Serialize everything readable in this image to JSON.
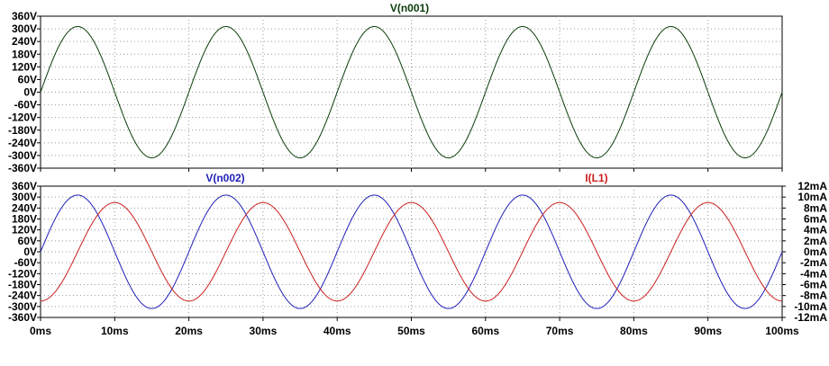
{
  "chart_data": [
    {
      "type": "line",
      "title": "V(n001)",
      "x_ticks": [
        "0ms",
        "10ms",
        "20ms",
        "30ms",
        "40ms",
        "50ms",
        "60ms",
        "70ms",
        "80ms",
        "90ms",
        "100ms"
      ],
      "y_ticks": [
        "360V",
        "300V",
        "240V",
        "180V",
        "120V",
        "60V",
        "0V",
        "-60V",
        "-120V",
        "-180V",
        "-240V",
        "-300V",
        "-360V"
      ],
      "xlim": [
        0,
        100
      ],
      "ylim": [
        -360,
        360
      ],
      "grid": true,
      "series": [
        {
          "name": "V(n001)",
          "color": "#0b3d0b",
          "axis": "left",
          "amplitude": 311,
          "frequency_hz": 50,
          "phase_deg": 0
        }
      ]
    },
    {
      "type": "line",
      "x_ticks": [
        "0ms",
        "10ms",
        "20ms",
        "30ms",
        "40ms",
        "50ms",
        "60ms",
        "70ms",
        "80ms",
        "90ms",
        "100ms"
      ],
      "y_ticks": [
        "360V",
        "300V",
        "240V",
        "180V",
        "120V",
        "60V",
        "0V",
        "-60V",
        "-120V",
        "-180V",
        "-240V",
        "-300V",
        "-360V"
      ],
      "y2_ticks": [
        "12mA",
        "10mA",
        "8mA",
        "6mA",
        "4mA",
        "2mA",
        "0mA",
        "-2mA",
        "-4mA",
        "-6mA",
        "-8mA",
        "-10mA",
        "-12mA"
      ],
      "xlim": [
        0,
        100
      ],
      "ylim": [
        -360,
        360
      ],
      "y2lim": [
        -12,
        12
      ],
      "grid": true,
      "series": [
        {
          "name": "V(n002)",
          "color": "#1f1fb8",
          "axis": "left",
          "amplitude": 311,
          "frequency_hz": 50,
          "phase_deg": 0
        },
        {
          "name": "I(L1)",
          "color": "#cc1f1f",
          "axis": "right",
          "amplitude": 9,
          "frequency_hz": 50,
          "phase_deg": -90
        }
      ]
    }
  ]
}
